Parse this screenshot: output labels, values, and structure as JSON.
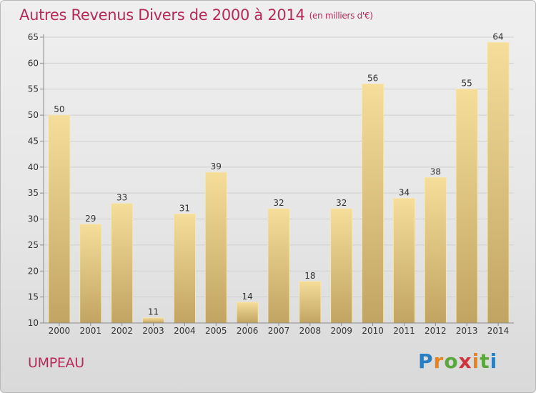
{
  "header": {
    "title": "Autres Revenus Divers de 2000 à 2014",
    "unit": "(en milliers d'€)"
  },
  "footer": {
    "commune": "UMPEAU",
    "logo_letters": [
      "P",
      "r",
      "o",
      "x",
      "i",
      "t",
      "i"
    ],
    "logo_colors": [
      "#2a7fc3",
      "#e8831f",
      "#5aa83c",
      "#d0353d",
      "#e8831f",
      "#5aa83c",
      "#2a7fc3"
    ]
  },
  "chart_data": {
    "type": "bar",
    "title": "Autres Revenus Divers de 2000 à 2014",
    "subtitle": "(en milliers d'€)",
    "xlabel": "",
    "ylabel": "",
    "categories": [
      "2000",
      "2001",
      "2002",
      "2003",
      "2004",
      "2005",
      "2006",
      "2007",
      "2008",
      "2009",
      "2010",
      "2011",
      "2012",
      "2013",
      "2014"
    ],
    "values": [
      50,
      29,
      33,
      11,
      31,
      39,
      14,
      32,
      18,
      32,
      56,
      34,
      38,
      55,
      64
    ],
    "ylim": [
      10,
      65
    ],
    "yticks": [
      10,
      15,
      20,
      25,
      30,
      35,
      40,
      45,
      50,
      55,
      60,
      65
    ],
    "grid": true,
    "legend": "none",
    "colors": {
      "bar_top": "#f5dd9a",
      "bar_bottom": "#c2a462",
      "grid": "#cfcfcf",
      "axis": "#8a8a8a",
      "text": "#333333"
    }
  }
}
